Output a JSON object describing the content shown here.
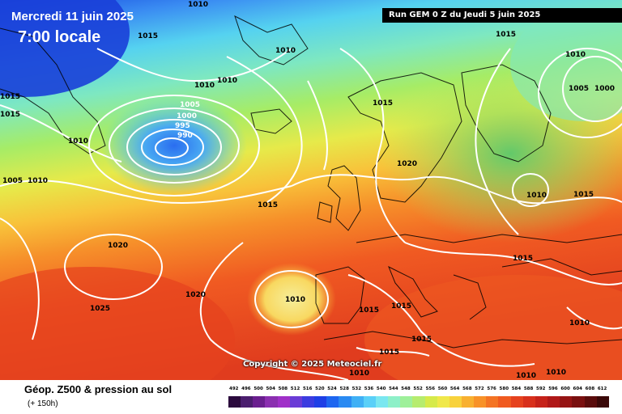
{
  "header": {
    "date": "Mercredi 11 juin 2025",
    "time": "7:00 locale",
    "run": "Run GEM 0 Z du Jeudi 5 juin 2025"
  },
  "copyright": "Copyright © 2025 Meteociel.fr",
  "footer": {
    "title": "Géop. Z500 & pression au sol",
    "subtitle": "(+ 150h)"
  },
  "isobar_labels": [
    "1010",
    "1015",
    "1015",
    "1015",
    "1010",
    "1010",
    "1010",
    "1005",
    "1000",
    "995",
    "990",
    "1010",
    "1010",
    "1005",
    "1010",
    "1015",
    "1020",
    "1010",
    "1015",
    "1020",
    "1020",
    "1010",
    "1015",
    "1015",
    "1015",
    "1025",
    "1015",
    "1015",
    "1015",
    "1010",
    "1010",
    "1010",
    "1005",
    "1000",
    "1010",
    "1015"
  ],
  "legend": {
    "labels": [
      "492",
      "496",
      "500",
      "504",
      "508",
      "512",
      "516",
      "520",
      "524",
      "528",
      "532",
      "536",
      "540",
      "544",
      "548",
      "552",
      "556",
      "560",
      "564",
      "568",
      "572",
      "576",
      "580",
      "584",
      "588",
      "592",
      "596",
      "600",
      "604",
      "608",
      "612"
    ],
    "colors": [
      "#2b0a3d",
      "#4b1e6e",
      "#6a1f8f",
      "#8b2fb0",
      "#a030c8",
      "#6a3cd6",
      "#3c3ce0",
      "#1f3fe6",
      "#1e66f0",
      "#2a8af2",
      "#3fb0f5",
      "#5ad0f8",
      "#7ae7f0",
      "#8ef0c8",
      "#9ef09a",
      "#b6ec6e",
      "#d6ea4a",
      "#f0e84a",
      "#f8d23c",
      "#f8b030",
      "#f89228",
      "#f47424",
      "#f05a20",
      "#e6421e",
      "#d8301c",
      "#c6221a",
      "#b01818",
      "#961414",
      "#7a1010",
      "#5a0c0c",
      "#3a0808"
    ]
  }
}
